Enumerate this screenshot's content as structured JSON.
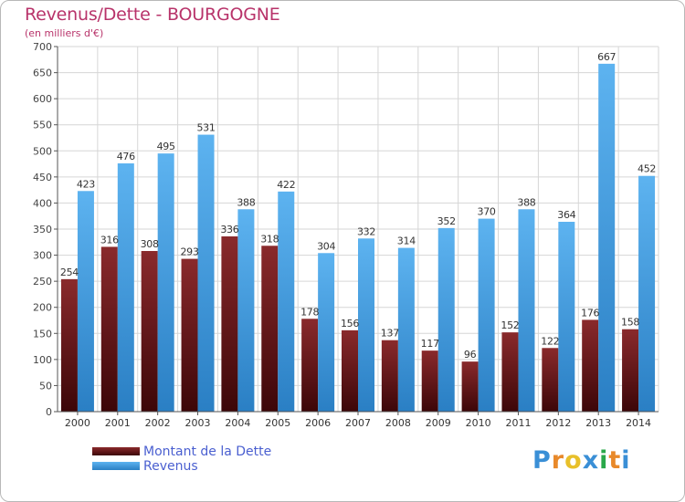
{
  "chart_data": {
    "type": "bar",
    "title": "Revenus/Dette - BOURGOGNE",
    "subtitle": "(en milliers d'€)",
    "xlabel": "",
    "ylabel": "",
    "ylim": [
      0,
      700
    ],
    "yticks": [
      0,
      50,
      100,
      150,
      200,
      250,
      300,
      350,
      400,
      450,
      500,
      550,
      600,
      650,
      700
    ],
    "grid": true,
    "categories": [
      "2000",
      "2001",
      "2002",
      "2003",
      "2004",
      "2005",
      "2006",
      "2007",
      "2008",
      "2009",
      "2010",
      "2011",
      "2012",
      "2013",
      "2014"
    ],
    "series": [
      {
        "name": "Montant de la Dette",
        "color": "#6b1a1c",
        "values": [
          254,
          316,
          308,
          293,
          336,
          318,
          178,
          156,
          137,
          117,
          96,
          152,
          122,
          176,
          158
        ]
      },
      {
        "name": "Revenus",
        "color": "#3f9be0",
        "values": [
          423,
          476,
          495,
          531,
          388,
          422,
          304,
          332,
          314,
          352,
          370,
          388,
          364,
          667,
          452
        ]
      }
    ]
  },
  "legend": {
    "items": [
      {
        "label": "Montant de la Dette",
        "color": "#6b1a1c"
      },
      {
        "label": "Revenus",
        "color": "#3f9be0"
      }
    ]
  },
  "logo": {
    "letters": [
      "P",
      "r",
      "o",
      "x",
      "i",
      "t",
      "i"
    ],
    "colors": [
      "#3a8fd6",
      "#e8892a",
      "#e8c02a",
      "#3a8fd6",
      "#2aa84a",
      "#e8892a",
      "#3a8fd6"
    ]
  }
}
